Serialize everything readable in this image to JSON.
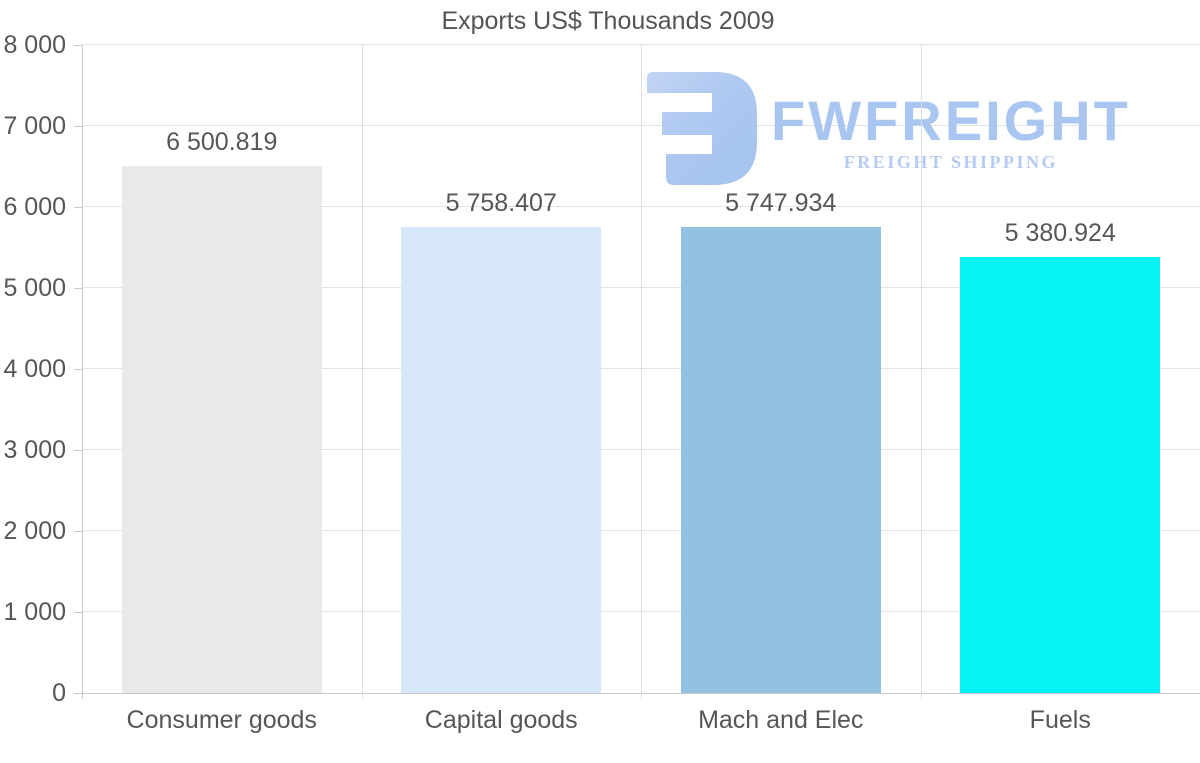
{
  "chart_data": {
    "type": "bar",
    "title": "Exports US$ Thousands 2009",
    "categories": [
      "Consumer goods",
      "Capital goods",
      "Mach and Elec",
      "Fuels"
    ],
    "values": [
      6500.819,
      5758.407,
      5747.934,
      5380.924
    ],
    "value_labels": [
      "6 500.819",
      "5 758.407",
      "5 747.934",
      "5 380.924"
    ],
    "bar_colors": [
      "#e9e9e9",
      "#d7e8f8",
      "#93c1e2",
      "#06f3f3"
    ],
    "xlabel": "",
    "ylabel": "",
    "ylim": [
      0,
      8000
    ],
    "yticks": [
      0,
      1000,
      2000,
      3000,
      4000,
      5000,
      6000,
      7000,
      8000
    ],
    "ytick_labels": [
      "0",
      "1 000",
      "2 000",
      "3 000",
      "4 000",
      "5 000",
      "6 000",
      "7 000",
      "8 000"
    ],
    "grid": true,
    "legend": false
  },
  "watermark": {
    "brand": "FWFREIGHT",
    "tagline": "FREIGHT SHIPPING",
    "brand_color": "#a5c3f0",
    "tagline_color": "#b2c9f3",
    "icon": "fwfreight-logo-icon"
  },
  "colors": {
    "background": "#ffffff",
    "title_text": "#545454",
    "label_text": "#565656",
    "grid_h": "#e3e3e3",
    "grid_v": "#dedede",
    "axis": "#c9c9c9"
  }
}
